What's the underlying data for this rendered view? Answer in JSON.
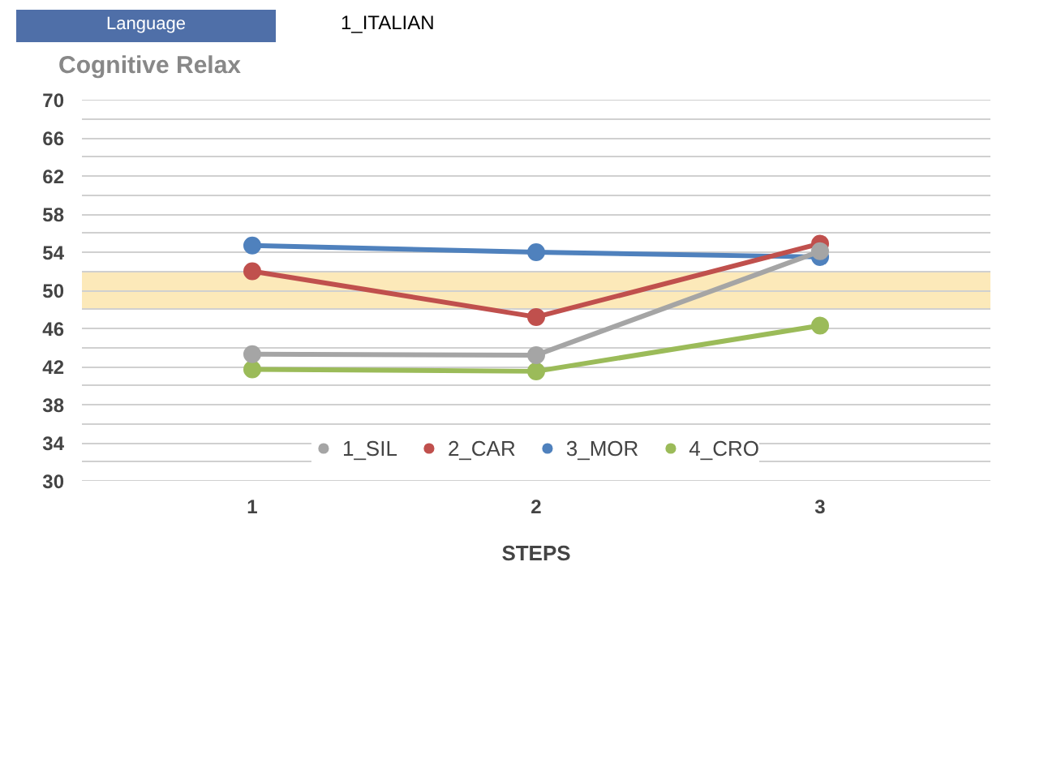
{
  "chart_data": {
    "type": "line",
    "title": "Cognitive Relax",
    "annotations": [
      "Language",
      "1_ITALIAN"
    ],
    "xlabel": "STEPS",
    "categories": [
      "1",
      "2",
      "3"
    ],
    "series": [
      {
        "name": "1_SIL",
        "color": "#a5a5a5",
        "values": [
          43.3,
          43.2,
          54.1
        ]
      },
      {
        "name": "2_CAR",
        "color": "#c0504d",
        "values": [
          52.0,
          47.2,
          54.9
        ]
      },
      {
        "name": "3_MOR",
        "color": "#4f81bd",
        "values": [
          54.7,
          54.0,
          53.5
        ]
      },
      {
        "name": "4_CRO",
        "color": "#9bbb59",
        "values": [
          41.7,
          41.5,
          46.3
        ]
      }
    ],
    "ylim": [
      30,
      70
    ],
    "yticks": [
      30,
      {
        "value": 32,
        "label": null
      },
      34,
      {
        "value": 36,
        "label": null
      },
      38,
      {
        "value": 40,
        "label": null
      },
      42,
      {
        "value": 44,
        "label": null
      },
      46,
      {
        "value": 48,
        "label": null
      },
      50,
      {
        "value": 52,
        "label": null
      },
      54,
      {
        "value": 56,
        "label": null
      },
      58,
      {
        "value": 60,
        "label": null
      },
      62,
      {
        "value": 64,
        "label": null
      },
      66,
      {
        "value": 68,
        "label": null
      },
      70
    ],
    "bands": [
      {
        "axis": "y",
        "from": 48,
        "to": 52,
        "color": "#fbe3a8"
      }
    ],
    "grid": "y",
    "legend": "bottom",
    "marker": "circle",
    "line_style": "solid"
  }
}
